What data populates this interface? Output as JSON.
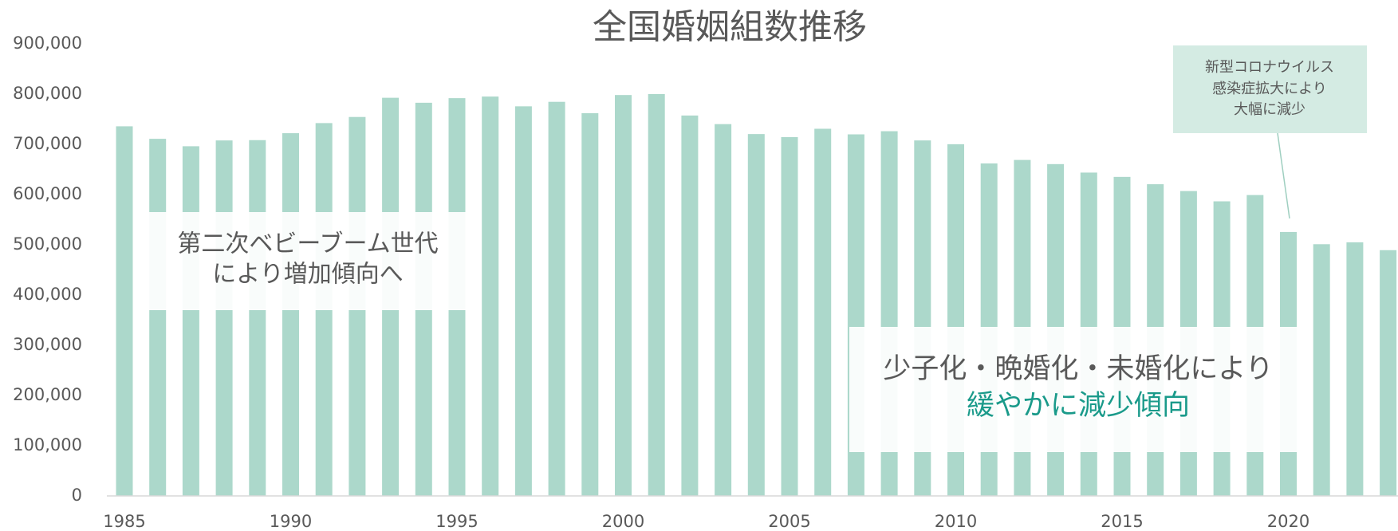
{
  "chart_data": {
    "type": "bar",
    "title": "全国婚姻組数推移",
    "categories": [
      "1985",
      null,
      null,
      null,
      null,
      "1990",
      null,
      null,
      null,
      null,
      "1995",
      null,
      null,
      null,
      null,
      "2000",
      null,
      null,
      null,
      null,
      "2005",
      null,
      null,
      null,
      null,
      "2010",
      null,
      null,
      null,
      null,
      "2015",
      null,
      null,
      null,
      null,
      "2020",
      null,
      null,
      null
    ],
    "values": [
      735850,
      710962,
      696173,
      707716,
      708316,
      722138,
      742264,
      754441,
      792658,
      782738,
      791888,
      795080,
      775651,
      784595,
      762028,
      798138,
      799999,
      757331,
      740191,
      720418,
      714265,
      730971,
      719822,
      726106,
      707734,
      700214,
      661895,
      668869,
      660613,
      643749,
      635156,
      620531,
      606952,
      586481,
      599007,
      525507,
      501138,
      504930,
      489281
    ],
    "color": "#acd8cb",
    "ylim": [
      0,
      900000
    ],
    "yticks": [
      0,
      {
        "value": 100000,
        "label": "100,000"
      },
      {
        "value": 200000,
        "label": "200,000"
      },
      {
        "value": 300000,
        "label": "300,000"
      },
      {
        "value": 400000,
        "label": "400,000"
      },
      {
        "value": 500000,
        "label": "500,000"
      },
      {
        "value": 600000,
        "label": "600,000"
      },
      {
        "value": 700000,
        "label": "700,000"
      },
      {
        "value": 800000,
        "label": "800,000"
      },
      {
        "value": 900000,
        "label": "900,000"
      }
    ],
    "grid": false,
    "annotations": [
      {
        "lines": [
          "第二次ベビーブーム世代",
          "により増加傾向へ"
        ]
      },
      {
        "lines": [
          "少子化・晩婚化・未婚化により",
          "緩やかに減少傾向"
        ]
      },
      {
        "lines": [
          "新型コロナウイルス",
          "感染症拡大により",
          "大幅に減少"
        ]
      }
    ]
  }
}
